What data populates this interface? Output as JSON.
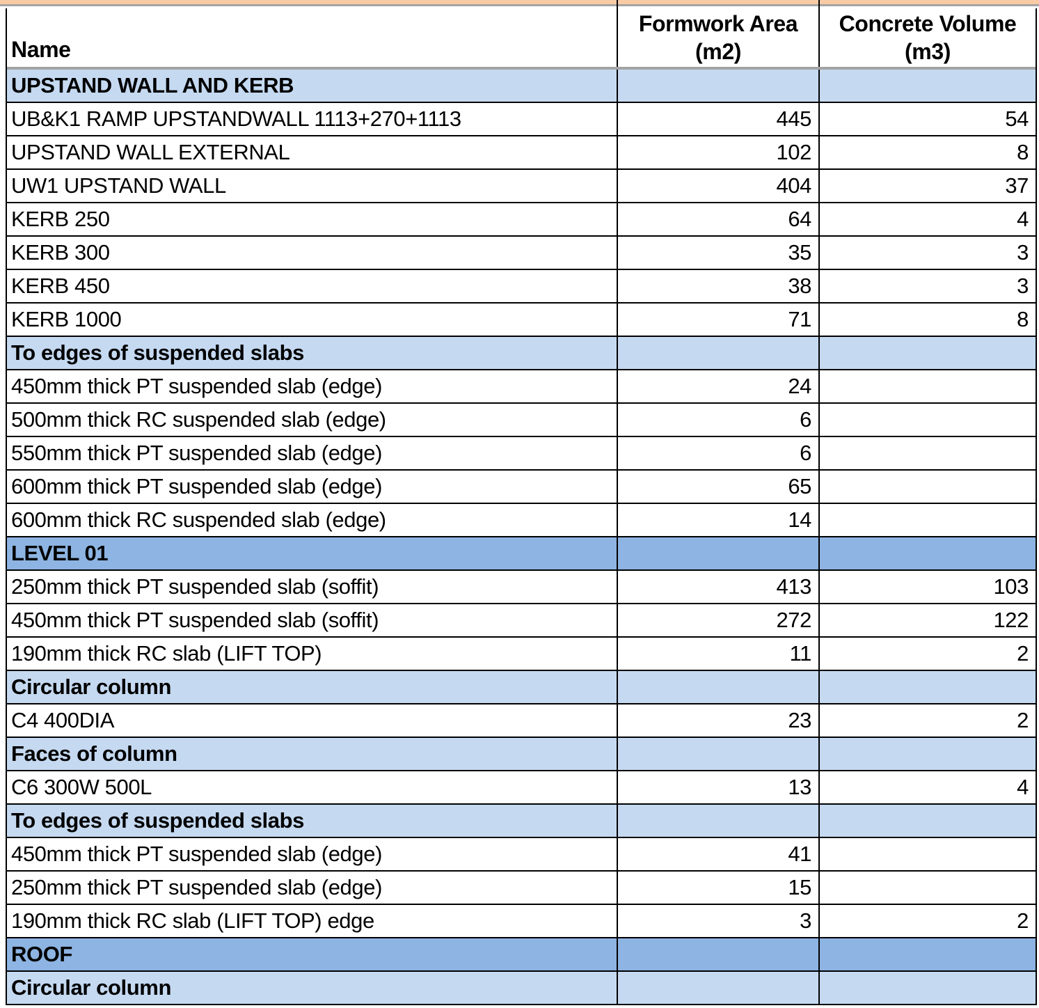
{
  "colors": {
    "orange": "#F8CBA4",
    "gray-line": "#A3A3A3",
    "section-bg": "#C5D9F1",
    "level-bg": "#8DB4E2"
  },
  "table": {
    "header": {
      "name": "Name",
      "formwork_line1": "Formwork Area",
      "formwork_line2": "(m2)",
      "concrete_line1": "Concrete Volume",
      "concrete_line2": "(m3)"
    },
    "rows": [
      {
        "type": "section",
        "name": "UPSTAND WALL AND KERB",
        "formwork": "",
        "concrete": ""
      },
      {
        "type": "data",
        "name": "UB&K1 RAMP UPSTANDWALL 1113+270+1113",
        "formwork": 445,
        "concrete": 54
      },
      {
        "type": "data",
        "name": "UPSTAND WALL EXTERNAL",
        "formwork": 102,
        "concrete": 8
      },
      {
        "type": "data",
        "name": "UW1 UPSTAND WALL",
        "formwork": 404,
        "concrete": 37
      },
      {
        "type": "data",
        "name": "KERB 250",
        "formwork": 64,
        "concrete": 4
      },
      {
        "type": "data",
        "name": "KERB 300",
        "formwork": 35,
        "concrete": 3
      },
      {
        "type": "data",
        "name": "KERB 450",
        "formwork": 38,
        "concrete": 3
      },
      {
        "type": "data",
        "name": "KERB 1000",
        "formwork": 71,
        "concrete": 8
      },
      {
        "type": "section",
        "name": "To edges of suspended slabs",
        "formwork": "",
        "concrete": ""
      },
      {
        "type": "data",
        "name": "450mm thick PT suspended slab (edge)",
        "formwork": 24,
        "concrete": ""
      },
      {
        "type": "data",
        "name": "500mm thick RC suspended slab (edge)",
        "formwork": 6,
        "concrete": ""
      },
      {
        "type": "data",
        "name": "550mm thick PT suspended slab (edge)",
        "formwork": 6,
        "concrete": ""
      },
      {
        "type": "data",
        "name": "600mm thick PT suspended slab (edge)",
        "formwork": 65,
        "concrete": ""
      },
      {
        "type": "data",
        "name": "600mm thick RC suspended slab (edge)",
        "formwork": 14,
        "concrete": ""
      },
      {
        "type": "level",
        "name": "LEVEL 01",
        "formwork": "",
        "concrete": ""
      },
      {
        "type": "data",
        "name": "250mm thick PT suspended slab (soffit)",
        "formwork": 413,
        "concrete": 103
      },
      {
        "type": "data",
        "name": "450mm thick PT suspended slab (soffit)",
        "formwork": 272,
        "concrete": 122
      },
      {
        "type": "data",
        "name": "190mm thick RC slab (LIFT TOP)",
        "formwork": 11,
        "concrete": 2
      },
      {
        "type": "section",
        "name": "Circular column",
        "formwork": "",
        "concrete": ""
      },
      {
        "type": "data",
        "name": "C4 400DIA",
        "formwork": 23,
        "concrete": 2
      },
      {
        "type": "section",
        "name": "Faces of column",
        "formwork": "",
        "concrete": ""
      },
      {
        "type": "data",
        "name": "C6 300W 500L",
        "formwork": 13,
        "concrete": 4
      },
      {
        "type": "section",
        "name": "To edges of suspended slabs",
        "formwork": "",
        "concrete": ""
      },
      {
        "type": "data",
        "name": "450mm thick PT suspended slab (edge)",
        "formwork": 41,
        "concrete": ""
      },
      {
        "type": "data",
        "name": "250mm thick PT suspended slab (edge)",
        "formwork": 15,
        "concrete": ""
      },
      {
        "type": "data",
        "name": "190mm thick RC slab (LIFT TOP) edge",
        "formwork": 3,
        "concrete": 2
      },
      {
        "type": "level",
        "name": "ROOF",
        "formwork": "",
        "concrete": ""
      },
      {
        "type": "section",
        "name": "Circular column",
        "formwork": "",
        "concrete": ""
      }
    ]
  }
}
